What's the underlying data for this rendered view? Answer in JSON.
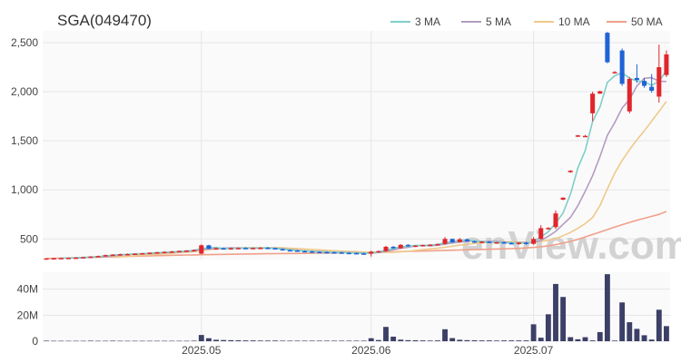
{
  "chart_data": {
    "type": "candlestick",
    "title": "SGA(049470)",
    "watermark": "enView.com",
    "legend": {
      "placement": "top-right",
      "items": [
        {
          "label": "3 MA",
          "color": "#7ecfc8"
        },
        {
          "label": "5 MA",
          "color": "#b49cc0"
        },
        {
          "label": "10 MA",
          "color": "#f0c98a"
        },
        {
          "label": "50 MA",
          "color": "#f0a08a"
        }
      ]
    },
    "colors": {
      "up": "#e0262c",
      "down": "#1f63d6",
      "volume": "#3c3f66"
    },
    "price_axis": {
      "ylim": [
        290,
        2620
      ],
      "ticks": [
        500,
        1000,
        1500,
        2000,
        2500
      ],
      "tick_labels": [
        "500",
        "1,000",
        "1,500",
        "2,000",
        "2,500"
      ]
    },
    "volume_axis": {
      "ylim": [
        0,
        53
      ],
      "unit": "M",
      "ticks": [
        0,
        20,
        40
      ],
      "tick_labels": [
        "0",
        "20M",
        "40M"
      ]
    },
    "x_axis": {
      "tick_labels": [
        {
          "label": "2025.05",
          "index": 21
        },
        {
          "label": "2025.06",
          "index": 44
        },
        {
          "label": "2025.07",
          "index": 66
        }
      ]
    },
    "grid": true,
    "ohlc": [
      [
        300,
        305,
        296,
        302
      ],
      [
        302,
        308,
        298,
        304
      ],
      [
        304,
        310,
        300,
        306
      ],
      [
        306,
        312,
        302,
        308
      ],
      [
        308,
        314,
        304,
        310
      ],
      [
        310,
        318,
        306,
        315
      ],
      [
        315,
        325,
        310,
        320
      ],
      [
        320,
        330,
        315,
        326
      ],
      [
        326,
        340,
        320,
        335
      ],
      [
        335,
        345,
        328,
        340
      ],
      [
        340,
        350,
        334,
        344
      ],
      [
        344,
        352,
        338,
        346
      ],
      [
        346,
        354,
        340,
        350
      ],
      [
        350,
        358,
        344,
        355
      ],
      [
        355,
        362,
        348,
        360
      ],
      [
        360,
        368,
        352,
        364
      ],
      [
        364,
        372,
        356,
        368
      ],
      [
        368,
        378,
        360,
        372
      ],
      [
        372,
        380,
        364,
        378
      ],
      [
        378,
        386,
        370,
        382
      ],
      [
        382,
        392,
        372,
        388
      ],
      [
        350,
        445,
        345,
        435
      ],
      [
        435,
        440,
        395,
        400
      ],
      [
        400,
        412,
        392,
        405
      ],
      [
        405,
        414,
        396,
        402
      ],
      [
        402,
        410,
        394,
        406
      ],
      [
        406,
        414,
        398,
        408
      ],
      [
        408,
        416,
        400,
        404
      ],
      [
        404,
        412,
        396,
        408
      ],
      [
        408,
        418,
        400,
        410
      ],
      [
        410,
        418,
        402,
        406
      ],
      [
        406,
        412,
        394,
        396
      ],
      [
        396,
        402,
        382,
        386
      ],
      [
        386,
        394,
        378,
        382
      ],
      [
        382,
        390,
        372,
        376
      ],
      [
        376,
        384,
        368,
        372
      ],
      [
        372,
        380,
        364,
        368
      ],
      [
        368,
        376,
        360,
        366
      ],
      [
        366,
        374,
        358,
        364
      ],
      [
        364,
        372,
        356,
        362
      ],
      [
        362,
        370,
        354,
        358
      ],
      [
        358,
        366,
        350,
        356
      ],
      [
        356,
        362,
        348,
        352
      ],
      [
        352,
        360,
        344,
        350
      ],
      [
        350,
        380,
        320,
        370
      ],
      [
        370,
        382,
        362,
        376
      ],
      [
        376,
        430,
        368,
        420
      ],
      [
        420,
        428,
        398,
        405
      ],
      [
        405,
        448,
        398,
        440
      ],
      [
        440,
        446,
        420,
        428
      ],
      [
        428,
        436,
        418,
        432
      ],
      [
        432,
        442,
        422,
        438
      ],
      [
        438,
        446,
        428,
        442
      ],
      [
        442,
        454,
        432,
        448
      ],
      [
        450,
        520,
        440,
        500
      ],
      [
        500,
        504,
        460,
        466
      ],
      [
        468,
        510,
        462,
        496
      ],
      [
        496,
        504,
        470,
        476
      ],
      [
        476,
        482,
        460,
        468
      ],
      [
        468,
        476,
        456,
        472
      ],
      [
        472,
        478,
        458,
        462
      ],
      [
        462,
        470,
        450,
        466
      ],
      [
        466,
        474,
        454,
        458
      ],
      [
        458,
        466,
        446,
        456
      ],
      [
        456,
        466,
        440,
        462
      ],
      [
        462,
        470,
        440,
        450
      ],
      [
        450,
        520,
        440,
        500
      ],
      [
        500,
        640,
        495,
        610
      ],
      [
        610,
        620,
        595,
        612
      ],
      [
        620,
        790,
        600,
        760
      ],
      [
        900,
        925,
        895,
        920
      ],
      [
        1180,
        1200,
        1175,
        1195
      ],
      [
        1545,
        1560,
        1540,
        1555
      ],
      [
        1545,
        1560,
        1540,
        1550
      ],
      [
        1780,
        2000,
        1700,
        1980
      ],
      [
        1980,
        2010,
        1980,
        2005
      ],
      [
        2600,
        2610,
        2290,
        2300
      ],
      [
        2200,
        2210,
        2190,
        2200
      ],
      [
        2420,
        2440,
        2060,
        2080
      ],
      [
        1800,
        2150,
        1780,
        2130
      ],
      [
        2140,
        2280,
        2090,
        2120
      ],
      [
        2110,
        2140,
        2040,
        2060
      ],
      [
        2050,
        2180,
        1990,
        2010
      ],
      [
        1950,
        2480,
        1890,
        2250
      ],
      [
        2170,
        2420,
        2150,
        2380
      ]
    ],
    "ma3": [
      null,
      null,
      304,
      306,
      308,
      311,
      315,
      320,
      327,
      334,
      340,
      343,
      347,
      350,
      355,
      360,
      364,
      368,
      373,
      377,
      383,
      402,
      408,
      413,
      402,
      404,
      405,
      406,
      407,
      407,
      408,
      403,
      396,
      388,
      381,
      377,
      372,
      369,
      366,
      364,
      361,
      359,
      355,
      353,
      357,
      365,
      389,
      400,
      422,
      424,
      433,
      433,
      437,
      443,
      463,
      471,
      487,
      489,
      480,
      472,
      467,
      467,
      462,
      460,
      458,
      456,
      471,
      521,
      574,
      661,
      764,
      958,
      1223,
      1400,
      1695,
      1845,
      2095,
      2162,
      2193,
      2137,
      2110,
      2103,
      2063,
      2107,
      2213
    ],
    "ma5": [
      null,
      null,
      null,
      null,
      306,
      309,
      313,
      317,
      323,
      329,
      335,
      341,
      344,
      347,
      351,
      355,
      359,
      364,
      368,
      372,
      377,
      392,
      398,
      404,
      406,
      410,
      407,
      406,
      406,
      406,
      408,
      406,
      401,
      392,
      385,
      379,
      375,
      371,
      368,
      365,
      363,
      361,
      358,
      356,
      356,
      361,
      375,
      388,
      406,
      414,
      431,
      434,
      430,
      436,
      448,
      458,
      468,
      476,
      479,
      476,
      474,
      475,
      468,
      462,
      463,
      462,
      463,
      484,
      528,
      577,
      649,
      720,
      838,
      985,
      1143,
      1340,
      1556,
      1685,
      1834,
      1922,
      2058,
      2136,
      2143,
      2107,
      2104
    ],
    "ma10": [
      null,
      null,
      null,
      null,
      null,
      null,
      null,
      null,
      null,
      312,
      318,
      323,
      328,
      333,
      338,
      343,
      349,
      354,
      360,
      364,
      370,
      382,
      390,
      398,
      401,
      406,
      410,
      410,
      411,
      411,
      411,
      411,
      409,
      405,
      402,
      397,
      393,
      389,
      384,
      380,
      376,
      373,
      370,
      367,
      365,
      362,
      363,
      365,
      369,
      373,
      382,
      391,
      398,
      405,
      415,
      426,
      437,
      443,
      455,
      460,
      467,
      471,
      472,
      471,
      469,
      467,
      466,
      474,
      487,
      502,
      532,
      566,
      608,
      656,
      717,
      840,
      1010,
      1170,
      1300,
      1410,
      1510,
      1600,
      1700,
      1800,
      1900
    ],
    "ma50": [
      300,
      302,
      304,
      306,
      308,
      310,
      312,
      314,
      316,
      318,
      320,
      322,
      324,
      326,
      328,
      330,
      331,
      333,
      334,
      336,
      337,
      339,
      340,
      342,
      343,
      344,
      345,
      346,
      347,
      348,
      349,
      350,
      351,
      352,
      352,
      353,
      354,
      355,
      356,
      357,
      358,
      359,
      360,
      361,
      363,
      365,
      367,
      369,
      371,
      373,
      375,
      377,
      379,
      381,
      383,
      385,
      387,
      389,
      391,
      393,
      395,
      397,
      399,
      401,
      404,
      408,
      413,
      420,
      430,
      442,
      457,
      475,
      495,
      520,
      545,
      570,
      595,
      620,
      645,
      668,
      690,
      710,
      730,
      750,
      780
    ],
    "volume": [
      0.4,
      0.3,
      0.3,
      0.3,
      0.3,
      0.3,
      0.4,
      0.3,
      0.3,
      0.4,
      0.3,
      0.3,
      0.3,
      0.3,
      0.3,
      0.3,
      0.3,
      0.3,
      0.3,
      0.3,
      0.4,
      4.8,
      2.3,
      1.1,
      0.9,
      0.8,
      0.7,
      0.6,
      0.6,
      0.5,
      0.5,
      0.5,
      0.4,
      0.4,
      0.4,
      0.4,
      0.4,
      0.4,
      0.4,
      0.4,
      0.4,
      0.4,
      0.4,
      0.4,
      2.3,
      0.9,
      11.0,
      3.5,
      1.2,
      0.8,
      0.7,
      0.6,
      0.5,
      0.6,
      9.2,
      2.4,
      1.1,
      0.8,
      0.7,
      0.6,
      0.6,
      0.5,
      0.6,
      0.6,
      0.6,
      0.6,
      13.0,
      2.7,
      20.7,
      44.0,
      34.0,
      3.1,
      1.5,
      3.1,
      0.6,
      7.0,
      51.5,
      0.5,
      29.8,
      14.6,
      9.5,
      4.6,
      1.3,
      24.2,
      11.6
    ]
  }
}
